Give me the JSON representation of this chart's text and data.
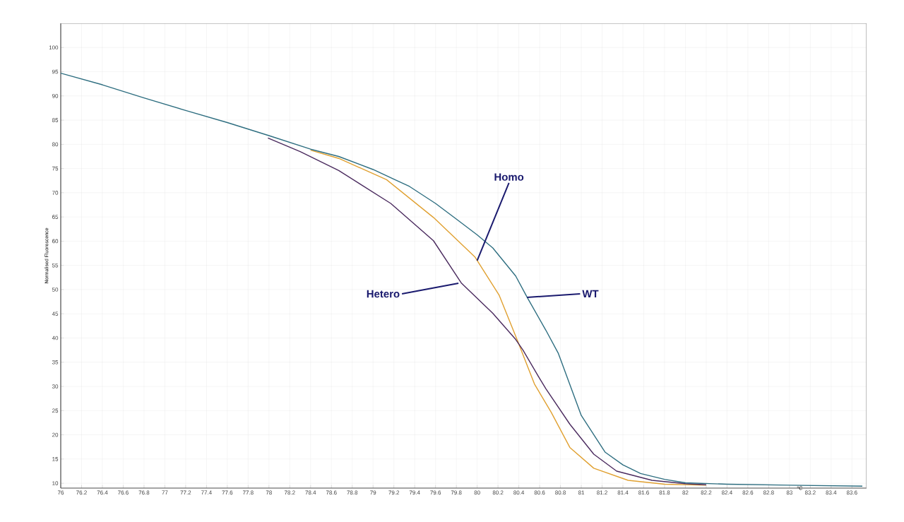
{
  "chart_data": {
    "type": "line",
    "xlabel": "°C",
    "ylabel": "Normalised Fluorescence",
    "xlim": [
      76,
      83.74
    ],
    "ylim": [
      9,
      105
    ],
    "xticks": [
      76,
      76.2,
      76.4,
      76.6,
      76.8,
      77,
      77.2,
      77.4,
      77.6,
      77.8,
      78,
      78.2,
      78.4,
      78.6,
      78.8,
      79,
      79.2,
      79.4,
      79.6,
      79.8,
      80,
      80.2,
      80.4,
      80.6,
      80.8,
      81,
      81.2,
      81.4,
      81.6,
      81.8,
      82,
      82.2,
      82.4,
      82.6,
      82.8,
      83,
      83.2,
      83.4,
      83.6
    ],
    "yticks": [
      10,
      15,
      20,
      25,
      30,
      35,
      40,
      45,
      50,
      55,
      60,
      65,
      70,
      75,
      80,
      85,
      90,
      95,
      100
    ],
    "grid": true,
    "marker": "none",
    "line_style": "solid",
    "series": [
      {
        "color": "#e0a030",
        "x": [
          78.4,
          78.67,
          79.13,
          79.58,
          79.98,
          80.21,
          80.39,
          80.55,
          80.71,
          80.89,
          81.12,
          81.45,
          81.8,
          82.2
        ],
        "values": [
          78.8,
          77.1,
          72.7,
          64.9,
          56.7,
          48.9,
          39.3,
          30.5,
          24.7,
          17.4,
          13.1,
          10.6,
          9.8,
          9.6
        ]
      },
      {
        "color": "#4a2a5e",
        "x": [
          77.99,
          78.3,
          78.67,
          79.17,
          79.58,
          79.85,
          80.15,
          80.37,
          80.44,
          80.59,
          80.66,
          80.89,
          81.12,
          81.34,
          81.68,
          82,
          82.2
        ],
        "values": [
          81.3,
          78.5,
          74.6,
          67.8,
          60.1,
          51.3,
          45.1,
          39.7,
          37.5,
          32.0,
          29.5,
          22.2,
          16.0,
          12.5,
          10.6,
          9.9,
          9.7
        ]
      },
      {
        "color": "#2e6e80",
        "x": [
          76,
          76.4,
          76.8,
          77.2,
          77.6,
          78,
          78.4,
          78.67,
          79,
          79.35,
          79.6,
          79.81,
          80,
          80.15,
          80.37,
          80.48,
          80.66,
          80.78,
          81,
          81.23,
          81.4,
          81.57,
          81.8,
          82,
          82.4,
          83,
          83.7
        ],
        "values": [
          94.7,
          92.3,
          89.6,
          87.0,
          84.5,
          81.8,
          79.0,
          77.5,
          74.8,
          71.3,
          67.8,
          64.4,
          61.3,
          58.6,
          52.8,
          48.4,
          41.6,
          36.8,
          24.0,
          16.4,
          13.8,
          12.0,
          10.8,
          10.1,
          9.8,
          9.6,
          9.4
        ]
      }
    ],
    "annotations": [
      {
        "text": "Homo",
        "x": 80.0,
        "y": 56
      },
      {
        "text": "Hetero",
        "x": 79.82,
        "y": 51.3
      },
      {
        "text": "WT",
        "x": 80.48,
        "y": 48.4
      }
    ]
  }
}
